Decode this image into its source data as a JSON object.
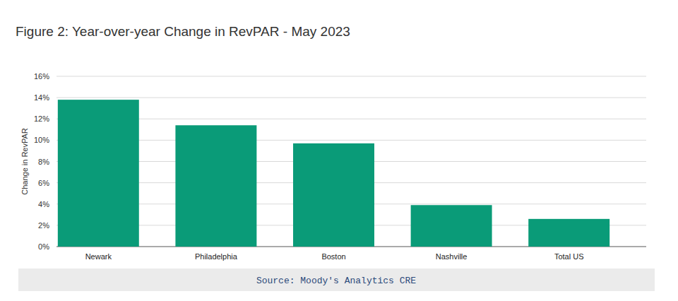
{
  "chart_data": {
    "type": "bar",
    "title": "Figure 2: Year-over-year Change in RevPAR - May 2023",
    "y_label": "Change in RevPAR",
    "source": "Source: Moody's Analytics CRE",
    "categories": [
      "Newark",
      "Philadelphia",
      "Boston",
      "Nashville",
      "Total US"
    ],
    "values": [
      13.8,
      11.4,
      9.7,
      3.9,
      2.6
    ],
    "color": "#0a9b78",
    "ylim": [
      0,
      16
    ],
    "yticks": [
      {
        "value": 0,
        "label": "0%"
      },
      {
        "value": 2,
        "label": "2%"
      },
      {
        "value": 4,
        "label": "4%"
      },
      {
        "value": 6,
        "label": "6%"
      },
      {
        "value": 8,
        "label": "8%"
      },
      {
        "value": 10,
        "label": "10%"
      },
      {
        "value": 12,
        "label": "12%"
      },
      {
        "value": 14,
        "label": "14%"
      },
      {
        "value": 16,
        "label": "16%"
      }
    ],
    "grid": true
  }
}
